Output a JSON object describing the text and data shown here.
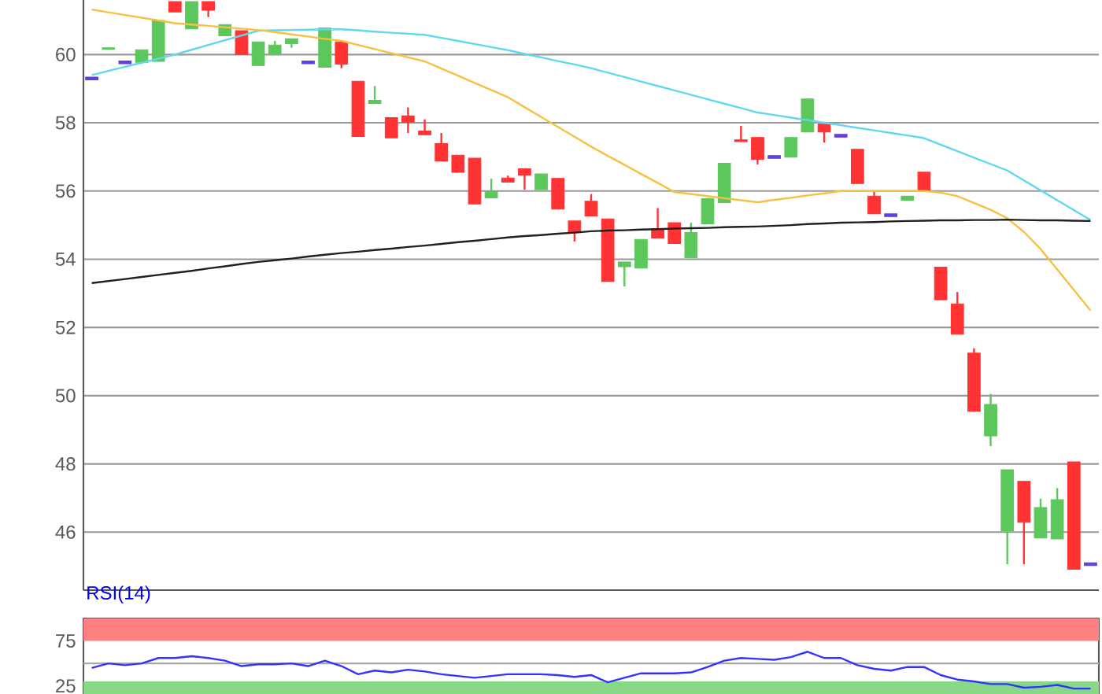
{
  "chart_data": [
    {
      "type": "candlestick",
      "categories": [
        null,
        null,
        null,
        null,
        null,
        null,
        null,
        null,
        null,
        null,
        null,
        null,
        null,
        null,
        null,
        null,
        null,
        null,
        null,
        null,
        null,
        null,
        null,
        null,
        null,
        null,
        null,
        null,
        null,
        null,
        null,
        null,
        null,
        null,
        null,
        null,
        null,
        null,
        null,
        null,
        null,
        null,
        null,
        null,
        null,
        null,
        null,
        null,
        null,
        null,
        null,
        null,
        null,
        null,
        null,
        null,
        null,
        null,
        null,
        null,
        null
      ],
      "ohlc": [
        [
          59.34,
          59.34,
          59.26,
          59.26
        ],
        [
          60.15,
          60.2,
          60.15,
          60.2
        ],
        [
          59.81,
          59.81,
          59.73,
          59.73
        ],
        [
          59.77,
          60.14,
          59.77,
          60.14
        ],
        [
          59.8,
          61.0,
          59.8,
          61.0
        ],
        [
          61.55,
          61.55,
          61.25,
          61.25
        ],
        [
          60.75,
          61.55,
          60.75,
          61.55
        ],
        [
          61.55,
          61.55,
          61.1,
          61.3
        ],
        [
          60.55,
          60.88,
          60.55,
          60.88
        ],
        [
          60.7,
          60.7,
          60.0,
          60.0
        ],
        [
          59.68,
          60.37,
          59.68,
          60.37
        ],
        [
          60.0,
          60.4,
          60.0,
          60.28
        ],
        [
          60.32,
          60.46,
          60.2,
          60.46
        ],
        [
          59.81,
          59.81,
          59.73,
          59.73
        ],
        [
          59.63,
          60.78,
          59.63,
          60.78
        ],
        [
          60.37,
          60.37,
          59.6,
          59.72
        ],
        [
          59.22,
          59.22,
          57.6,
          57.6
        ],
        [
          58.57,
          59.08,
          58.57,
          58.66
        ],
        [
          58.15,
          58.15,
          57.56,
          57.56
        ],
        [
          58.2,
          58.45,
          57.7,
          58.02
        ],
        [
          57.76,
          58.1,
          57.65,
          57.65
        ],
        [
          57.39,
          57.7,
          56.88,
          56.88
        ],
        [
          57.05,
          57.05,
          56.55,
          56.55
        ],
        [
          56.96,
          56.96,
          55.62,
          55.62
        ],
        [
          55.8,
          56.36,
          55.8,
          55.99
        ],
        [
          56.38,
          56.45,
          56.26,
          56.26
        ],
        [
          56.65,
          56.65,
          56.04,
          56.47
        ],
        [
          56.04,
          56.5,
          56.04,
          56.5
        ],
        [
          56.37,
          56.37,
          55.47,
          55.47
        ],
        [
          55.12,
          55.12,
          54.52,
          54.78
        ],
        [
          55.7,
          55.91,
          55.27,
          55.27
        ],
        [
          55.18,
          55.18,
          53.35,
          53.35
        ],
        [
          53.78,
          53.92,
          53.2,
          53.92
        ],
        [
          53.74,
          54.58,
          53.74,
          54.58
        ],
        [
          54.89,
          55.5,
          54.62,
          54.62
        ],
        [
          55.07,
          55.07,
          54.46,
          54.46
        ],
        [
          54.04,
          55.07,
          54.04,
          54.78
        ],
        [
          55.04,
          55.78,
          55.04,
          55.78
        ],
        [
          55.66,
          56.81,
          55.66,
          56.81
        ],
        [
          57.5,
          57.91,
          57.45,
          57.45
        ],
        [
          57.57,
          57.57,
          56.78,
          56.93
        ],
        [
          57.04,
          57.04,
          56.96,
          56.96
        ],
        [
          56.99,
          57.57,
          56.99,
          57.57
        ],
        [
          57.73,
          58.7,
          57.73,
          58.7
        ],
        [
          57.96,
          57.96,
          57.42,
          57.73
        ],
        [
          57.66,
          57.66,
          57.58,
          57.58
        ],
        [
          57.22,
          57.22,
          56.22,
          56.22
        ],
        [
          55.85,
          56.0,
          55.33,
          55.33
        ],
        [
          55.33,
          55.33,
          55.25,
          55.25
        ],
        [
          55.73,
          55.85,
          55.73,
          55.85
        ],
        [
          56.55,
          56.55,
          56.0,
          56.0
        ],
        [
          53.77,
          53.77,
          52.81,
          52.81
        ],
        [
          52.69,
          53.04,
          51.8,
          51.8
        ],
        [
          51.25,
          51.39,
          49.54,
          49.54
        ],
        [
          48.82,
          50.05,
          48.52,
          49.74
        ],
        [
          46.03,
          47.83,
          45.06,
          47.83
        ],
        [
          47.49,
          47.49,
          45.06,
          46.29
        ],
        [
          45.83,
          46.98,
          45.83,
          46.72
        ],
        [
          45.8,
          47.29,
          45.8,
          46.95
        ],
        [
          48.06,
          48.06,
          44.91,
          44.91
        ],
        [
          45.1,
          45.1,
          45.02,
          45.02
        ]
      ],
      "colors": [
        "#6040e0",
        "#5cc85c",
        "#6040e0",
        "#5cc85c",
        "#5cc85c",
        "#ff3333",
        "#5cc85c",
        "#ff3333",
        "#5cc85c",
        "#ff3333",
        "#5cc85c",
        "#5cc85c",
        "#5cc85c",
        "#6040e0",
        "#5cc85c",
        "#ff3333",
        "#ff3333",
        "#5cc85c",
        "#ff3333",
        "#ff3333",
        "#ff3333",
        "#ff3333",
        "#ff3333",
        "#ff3333",
        "#5cc85c",
        "#ff3333",
        "#ff3333",
        "#5cc85c",
        "#ff3333",
        "#ff3333",
        "#ff3333",
        "#ff3333",
        "#5cc85c",
        "#5cc85c",
        "#ff3333",
        "#ff3333",
        "#5cc85c",
        "#5cc85c",
        "#5cc85c",
        "#ff3333",
        "#ff3333",
        "#6040e0",
        "#5cc85c",
        "#5cc85c",
        "#ff3333",
        "#6040e0",
        "#ff3333",
        "#ff3333",
        "#6040e0",
        "#5cc85c",
        "#ff3333",
        "#ff3333",
        "#ff3333",
        "#ff3333",
        "#5cc85c",
        "#5cc85c",
        "#ff3333",
        "#5cc85c",
        "#5cc85c",
        "#ff3333",
        "#6040e0"
      ],
      "series": [
        {
          "type": "line",
          "color": "#5fd8f0",
          "values": [
            59.4,
            59.52,
            59.64,
            59.76,
            59.88,
            60.0,
            60.14,
            60.28,
            60.42,
            60.56,
            60.7,
            60.71,
            60.72,
            60.73,
            60.74,
            60.74,
            60.71,
            60.67,
            60.64,
            60.61,
            60.58,
            60.49,
            60.4,
            60.31,
            60.22,
            60.13,
            60.02,
            59.92,
            59.81,
            59.71,
            59.6,
            59.47,
            59.34,
            59.21,
            59.08,
            58.95,
            58.82,
            58.69,
            58.56,
            58.43,
            58.3,
            58.23,
            58.15,
            58.08,
            58.0,
            57.93,
            57.85,
            57.78,
            57.7,
            57.63,
            57.55,
            57.36,
            57.17,
            56.98,
            56.79,
            56.6,
            56.31,
            56.02,
            55.73,
            55.44,
            55.15
          ]
        },
        {
          "type": "line",
          "color": "#f8c040",
          "values": [
            61.32,
            61.24,
            61.16,
            61.08,
            61.0,
            60.92,
            60.88,
            60.84,
            60.8,
            60.76,
            60.72,
            60.66,
            60.59,
            60.53,
            60.46,
            60.4,
            60.28,
            60.16,
            60.04,
            59.92,
            59.8,
            59.59,
            59.38,
            59.17,
            58.96,
            58.75,
            58.46,
            58.17,
            57.88,
            57.59,
            57.3,
            57.03,
            56.77,
            56.5,
            56.24,
            55.97,
            55.91,
            55.85,
            55.79,
            55.73,
            55.67,
            55.74,
            55.8,
            55.87,
            55.93,
            56.0,
            56.0,
            56.0,
            56.0,
            56.0,
            56.0,
            55.95,
            55.85,
            55.65,
            55.45,
            55.2,
            54.8,
            54.3,
            53.7,
            53.1,
            52.5
          ]
        },
        {
          "type": "line",
          "color": "#202020",
          "values": [
            53.3,
            53.36,
            53.42,
            53.48,
            53.54,
            53.6,
            53.66,
            53.73,
            53.79,
            53.86,
            53.92,
            53.97,
            54.02,
            54.08,
            54.13,
            54.18,
            54.22,
            54.27,
            54.31,
            54.36,
            54.4,
            54.45,
            54.5,
            54.54,
            54.59,
            54.64,
            54.68,
            54.71,
            54.75,
            54.78,
            54.82,
            54.84,
            54.85,
            54.87,
            54.88,
            54.9,
            54.91,
            54.92,
            54.94,
            54.95,
            54.96,
            54.98,
            55.0,
            55.03,
            55.05,
            55.07,
            55.08,
            55.09,
            55.11,
            55.12,
            55.13,
            55.14,
            55.14,
            55.15,
            55.15,
            55.16,
            55.15,
            55.14,
            55.14,
            55.13,
            55.12
          ]
        }
      ],
      "ylim": [
        44.3,
        61.6
      ],
      "yticks": [
        46,
        48,
        50,
        52,
        54,
        56,
        58,
        60
      ],
      "grid": "y",
      "tick_labels": "y"
    },
    {
      "type": "line",
      "title": "RSI(14)",
      "categories": [
        null,
        null,
        null,
        null,
        null,
        null,
        null,
        null,
        null,
        null,
        null,
        null,
        null,
        null,
        null,
        null,
        null,
        null,
        null,
        null,
        null,
        null,
        null,
        null,
        null,
        null,
        null,
        null,
        null,
        null,
        null,
        null,
        null,
        null,
        null,
        null,
        null,
        null,
        null,
        null,
        null,
        null,
        null,
        null,
        null,
        null,
        null,
        null,
        null,
        null,
        null,
        null,
        null,
        null,
        null,
        null,
        null,
        null,
        null,
        null,
        null
      ],
      "series": [
        {
          "color": "#3333ff",
          "values": [
            45,
            50,
            48,
            50,
            56,
            56,
            58,
            56,
            53,
            47,
            49,
            49,
            50,
            47,
            53,
            47,
            38,
            42,
            40,
            43,
            41,
            38,
            36,
            34,
            36,
            38,
            38,
            38,
            37,
            35,
            37,
            29,
            34,
            39,
            39,
            39,
            40,
            46,
            53,
            56,
            55,
            54,
            57,
            63,
            56,
            56,
            48,
            44,
            42,
            46,
            46,
            37,
            32,
            30,
            27,
            27,
            23,
            24,
            26,
            22,
            22
          ]
        }
      ],
      "ylim": [
        16,
        100
      ],
      "yticks": [
        25,
        75
      ],
      "bands": [
        {
          "axis": "y",
          "from": 75,
          "to": 100,
          "color": "#ff8080"
        },
        {
          "axis": "y",
          "from": 16,
          "to": 30,
          "color": "#88d888"
        }
      ],
      "ref_lines": [
        {
          "axis": "y",
          "value": 50,
          "color": "#a8a8a8"
        }
      ],
      "tick_labels": "y"
    }
  ]
}
